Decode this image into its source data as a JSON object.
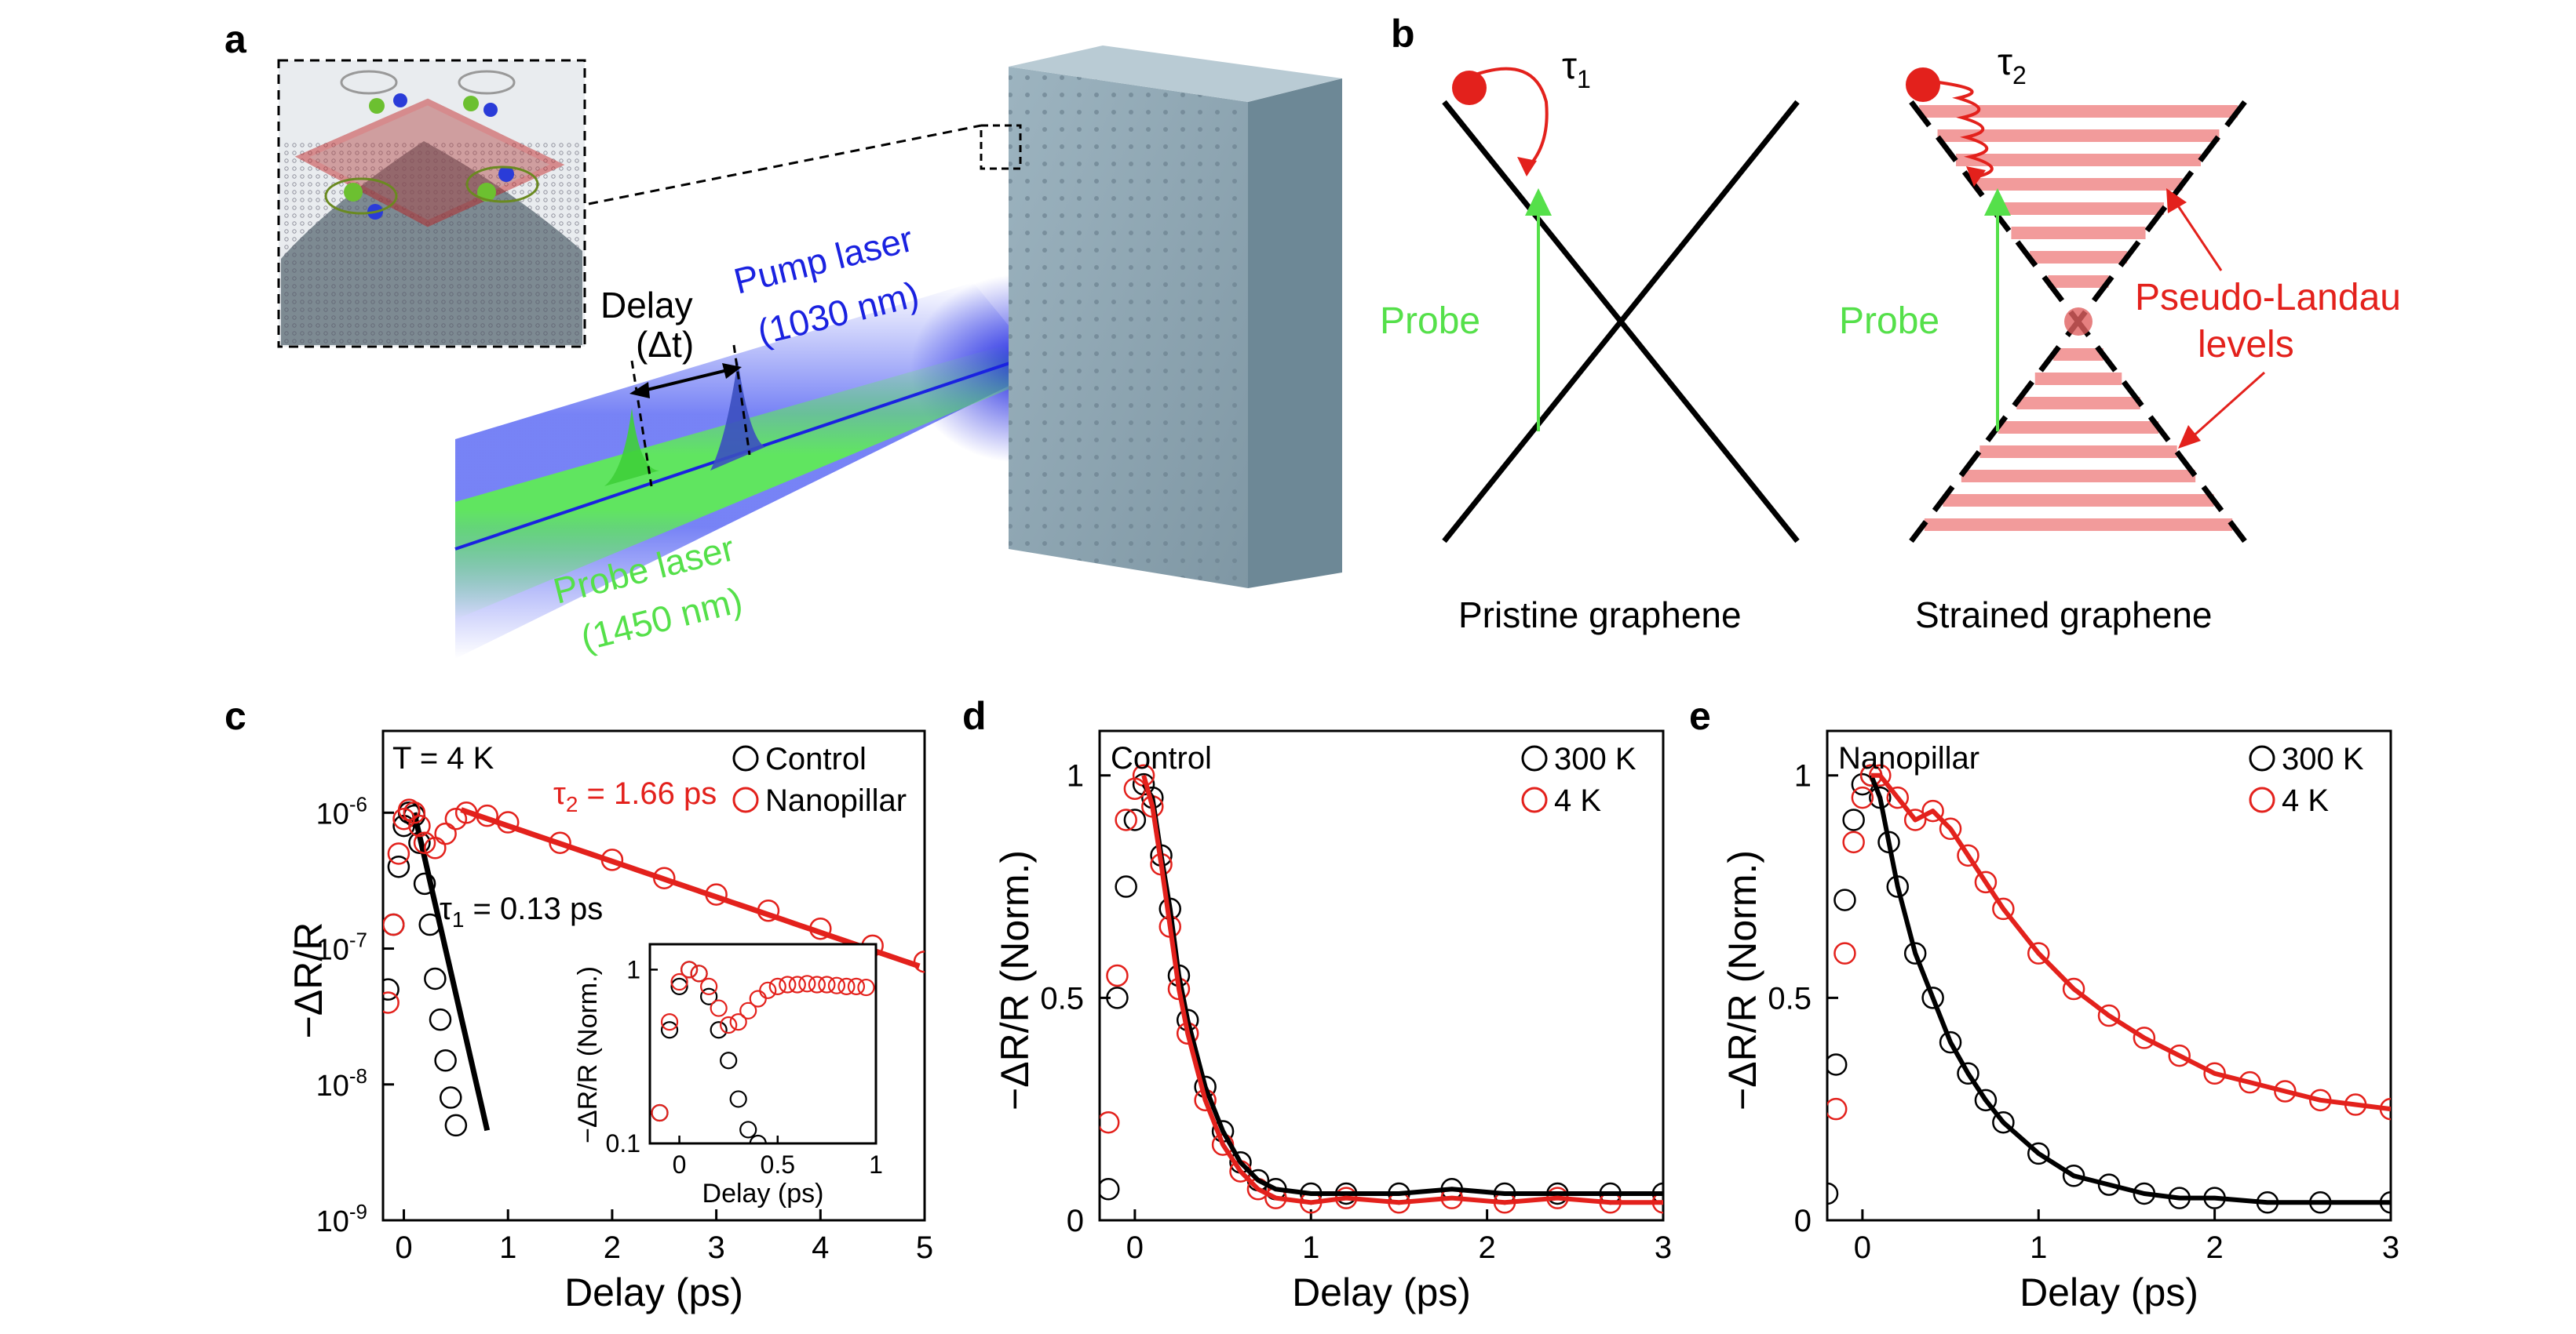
{
  "figure": {
    "panel_labels": {
      "a": "a",
      "b": "b",
      "c": "c",
      "d": "d",
      "e": "e"
    },
    "colors": {
      "black": "#000000",
      "red": "#e3211c",
      "green": "#55e04a",
      "blue": "#1a22e0",
      "pink": "#f08a8a",
      "slab": "#8fa6b2"
    }
  },
  "panel_a": {
    "delay_label": "Delay",
    "delta_t_label": "(Δt)",
    "pump_label": "Pump laser",
    "pump_wavelength": "(1030 nm)",
    "probe_label": "Probe laser",
    "probe_wavelength": "(1450 nm)"
  },
  "panel_b": {
    "tau1": "τ",
    "tau1_sub": "1",
    "tau2": "τ",
    "tau2_sub": "2",
    "probe_left": "Probe",
    "probe_right": "Probe",
    "pll_label_1": "Pseudo-Landau",
    "pll_label_2": "levels",
    "caption_left": "Pristine graphene",
    "caption_right": "Strained graphene"
  },
  "chart_data": [
    {
      "panel": "c",
      "type": "scatter",
      "ylabel": "−ΔR/R",
      "xlabel": "Delay (ps)",
      "yscale": "log",
      "xlim": [
        -0.2,
        5
      ],
      "ylim": [
        1e-09,
        4e-06
      ],
      "xticks": [
        0,
        1,
        2,
        3,
        4,
        5
      ],
      "ytick_labels": [
        "10-6",
        "10-7",
        "10-8",
        "10-9"
      ],
      "annotations": {
        "temp": "T = 4 K",
        "tau2": "τ",
        "tau2_sub": "2",
        "tau2_val": " = 1.66 ps",
        "tau1": "τ",
        "tau1_sub": "1",
        "tau1_val": " = 0.13 ps"
      },
      "legend": [
        "Control",
        "Nanopillar"
      ],
      "series": [
        {
          "name": "Control",
          "color": "#000000",
          "x": [
            -0.15,
            -0.1,
            -0.05,
            0.0,
            0.05,
            0.1,
            0.15,
            0.2,
            0.25,
            0.3,
            0.35,
            0.4,
            0.45,
            0.5
          ],
          "y": [
            5e-08,
            1.5e-07,
            4e-07,
            8e-07,
            1e-06,
            9.5e-07,
            6e-07,
            3e-07,
            1.5e-07,
            6e-08,
            3e-08,
            1.5e-08,
            8e-09,
            5e-09
          ]
        },
        {
          "name": "Nanopillar",
          "color": "#e3211c",
          "x": [
            -0.15,
            -0.1,
            -0.05,
            0.0,
            0.05,
            0.1,
            0.15,
            0.2,
            0.3,
            0.4,
            0.5,
            0.6,
            0.8,
            1.0,
            1.5,
            2.0,
            2.5,
            3.0,
            3.5,
            4.0,
            4.5,
            5.0
          ],
          "y": [
            4e-08,
            1.5e-07,
            5e-07,
            9e-07,
            1.05e-06,
            1e-06,
            8e-07,
            6e-07,
            5.5e-07,
            7e-07,
            9e-07,
            1e-06,
            9.5e-07,
            8.5e-07,
            6e-07,
            4.5e-07,
            3.3e-07,
            2.5e-07,
            1.9e-07,
            1.4e-07,
            1.05e-07,
            8e-08
          ]
        }
      ],
      "fits": [
        {
          "name": "τ1 fit",
          "color": "#000000",
          "tau_ps": 0.13
        },
        {
          "name": "τ2 fit",
          "color": "#e3211c",
          "tau_ps": 1.66
        }
      ],
      "inset": {
        "ylabel": "−ΔR/R (Norm.)",
        "xlabel": "Delay (ps)",
        "xticks": [
          0,
          0.5,
          1
        ],
        "ytick_labels": [
          "1",
          "0.1"
        ],
        "series": [
          {
            "name": "Control",
            "x": [
              -0.1,
              -0.05,
              0.0,
              0.05,
              0.1,
              0.15,
              0.2,
              0.25,
              0.3,
              0.35,
              0.4
            ],
            "y": [
              0.15,
              0.45,
              0.8,
              1.0,
              0.95,
              0.7,
              0.45,
              0.3,
              0.18,
              0.12,
              0.1
            ]
          },
          {
            "name": "Nanopillar",
            "x": [
              -0.1,
              -0.05,
              0.0,
              0.05,
              0.1,
              0.15,
              0.2,
              0.25,
              0.3,
              0.35,
              0.4,
              0.45,
              0.5,
              0.55,
              0.6,
              0.65,
              0.7,
              0.75,
              0.8,
              0.85,
              0.9,
              0.95
            ],
            "y": [
              0.15,
              0.5,
              0.85,
              1.0,
              0.95,
              0.8,
              0.6,
              0.48,
              0.5,
              0.58,
              0.68,
              0.76,
              0.8,
              0.82,
              0.82,
              0.83,
              0.82,
              0.82,
              0.81,
              0.8,
              0.8,
              0.79
            ]
          }
        ]
      }
    },
    {
      "panel": "d",
      "type": "scatter",
      "ylabel": "−ΔR/R (Norm.)",
      "xlabel": "Delay (ps)",
      "xlim": [
        -0.2,
        3
      ],
      "ylim": [
        0,
        1.1
      ],
      "xticks": [
        0,
        1,
        2,
        3
      ],
      "yticks": [
        0,
        0.5,
        1
      ],
      "title_box": "Control",
      "legend": [
        "300 K",
        "4 K"
      ],
      "series": [
        {
          "name": "300 K",
          "color": "#000000",
          "x": [
            -0.15,
            -0.1,
            -0.05,
            0.0,
            0.05,
            0.1,
            0.15,
            0.2,
            0.25,
            0.3,
            0.4,
            0.5,
            0.6,
            0.7,
            0.8,
            1.0,
            1.2,
            1.5,
            1.8,
            2.1,
            2.4,
            2.7,
            3.0
          ],
          "y": [
            0.07,
            0.5,
            0.75,
            0.9,
            0.98,
            0.95,
            0.82,
            0.7,
            0.55,
            0.45,
            0.3,
            0.2,
            0.13,
            0.09,
            0.07,
            0.06,
            0.06,
            0.06,
            0.07,
            0.06,
            0.06,
            0.06,
            0.06
          ]
        },
        {
          "name": "4 K",
          "color": "#e3211c",
          "x": [
            -0.15,
            -0.1,
            -0.05,
            0.0,
            0.05,
            0.1,
            0.15,
            0.2,
            0.25,
            0.3,
            0.4,
            0.5,
            0.6,
            0.7,
            0.8,
            1.0,
            1.2,
            1.5,
            1.8,
            2.1,
            2.4,
            2.7,
            3.0
          ],
          "y": [
            0.22,
            0.55,
            0.9,
            0.97,
            1.0,
            0.93,
            0.8,
            0.66,
            0.52,
            0.42,
            0.27,
            0.17,
            0.11,
            0.07,
            0.05,
            0.04,
            0.05,
            0.04,
            0.05,
            0.04,
            0.05,
            0.04,
            0.04
          ]
        }
      ],
      "fits": [
        {
          "name": "300 K fit",
          "color": "#000000"
        },
        {
          "name": "4 K fit",
          "color": "#e3211c"
        }
      ]
    },
    {
      "panel": "e",
      "type": "scatter",
      "ylabel": "−ΔR/R (Norm.)",
      "xlabel": "Delay (ps)",
      "xlim": [
        -0.2,
        3
      ],
      "ylim": [
        0,
        1.1
      ],
      "xticks": [
        0,
        1,
        2,
        3
      ],
      "yticks": [
        0,
        0.5,
        1
      ],
      "title_box": "Nanopillar",
      "legend": [
        "300 K",
        "4 K"
      ],
      "series": [
        {
          "name": "300 K",
          "color": "#000000",
          "x": [
            -0.2,
            -0.15,
            -0.1,
            -0.05,
            0.0,
            0.05,
            0.1,
            0.15,
            0.2,
            0.3,
            0.4,
            0.5,
            0.6,
            0.7,
            0.8,
            1.0,
            1.2,
            1.4,
            1.6,
            1.8,
            2.0,
            2.3,
            2.6,
            3.0
          ],
          "y": [
            0.06,
            0.35,
            0.72,
            0.9,
            0.98,
            1.0,
            0.95,
            0.85,
            0.75,
            0.6,
            0.5,
            0.4,
            0.33,
            0.27,
            0.22,
            0.15,
            0.1,
            0.08,
            0.06,
            0.05,
            0.05,
            0.04,
            0.04,
            0.04
          ]
        },
        {
          "name": "4 K",
          "color": "#e3211c",
          "x": [
            -0.15,
            -0.1,
            -0.05,
            0.0,
            0.05,
            0.1,
            0.2,
            0.3,
            0.4,
            0.5,
            0.6,
            0.7,
            0.8,
            1.0,
            1.2,
            1.4,
            1.6,
            1.8,
            2.0,
            2.2,
            2.4,
            2.6,
            2.8,
            3.0
          ],
          "y": [
            0.25,
            0.6,
            0.85,
            0.95,
            1.0,
            1.0,
            0.95,
            0.9,
            0.92,
            0.88,
            0.82,
            0.76,
            0.7,
            0.6,
            0.52,
            0.46,
            0.41,
            0.37,
            0.33,
            0.31,
            0.29,
            0.27,
            0.26,
            0.25
          ]
        }
      ],
      "fits": [
        {
          "name": "300 K fit",
          "color": "#000000"
        },
        {
          "name": "4 K fit",
          "color": "#e3211c"
        }
      ]
    }
  ]
}
